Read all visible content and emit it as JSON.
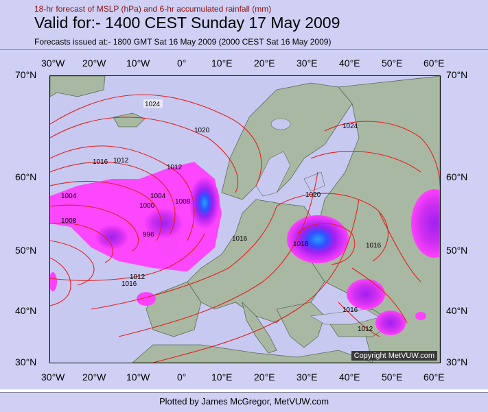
{
  "header": {
    "subtitle": "18-hr forecast of MSLP (hPa) and 6-hr accumulated rainfall (mm)",
    "title": "Valid for:- 1400 CEST Sunday 17 May 2009",
    "issued": "Forecasts issued at:- 1800 GMT Sat 16 May 2009 (2000 CEST Sat 16 May 2009)"
  },
  "axes": {
    "lon_labels": [
      "30°W",
      "20°W",
      "10°W",
      "0°",
      "10°E",
      "20°E",
      "30°E",
      "40°E",
      "50°E",
      "60°E"
    ],
    "lat_labels": [
      "70°N",
      "60°N",
      "50°N",
      "40°N",
      "30°N"
    ]
  },
  "isobar_labels": [
    "1024",
    "1020",
    "1016",
    "1012",
    "1012",
    "1008",
    "1004",
    "1000",
    "996",
    "1004",
    "1008",
    "1012",
    "1016",
    "1016",
    "1016",
    "1020",
    "1024",
    "1016",
    "1016",
    "1012"
  ],
  "colors": {
    "isobar": "#e02020",
    "rain_light": "#ff40ff",
    "rain_mid": "#a020f0",
    "rain_heavy": "#2060ff",
    "sea": "#c8c9f0",
    "land": "#a9b8a2"
  },
  "copyright": "Copyright MetVUW.com",
  "footer": "Plotted by James McGregor, MetVUW.com"
}
